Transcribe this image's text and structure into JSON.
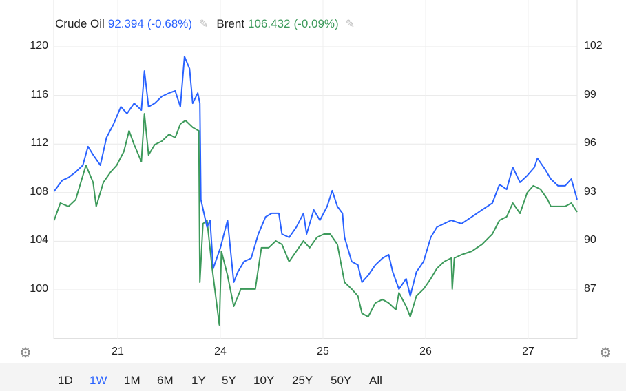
{
  "legend": [
    {
      "name": "Crude Oil",
      "value": "92.394",
      "change": "(-0.68%)",
      "color": "#2962ff",
      "icon": "pencil-icon"
    },
    {
      "name": "Brent",
      "value": "106.432",
      "change": "(-0.09%)",
      "color": "#3d9a5b",
      "icon": "pencil-icon"
    }
  ],
  "ranges": [
    "1D",
    "1W",
    "1M",
    "6M",
    "1Y",
    "5Y",
    "10Y",
    "25Y",
    "50Y",
    "All"
  ],
  "active_range": "1W",
  "settings_icon": "gear-icon",
  "chart_data": {
    "type": "line",
    "x_ticks": [
      {
        "t": 0,
        "label": "21"
      },
      {
        "t": 1,
        "label": "24"
      },
      {
        "t": 2,
        "label": "25"
      },
      {
        "t": 3,
        "label": "26"
      },
      {
        "t": 4,
        "label": "27"
      }
    ],
    "x_range": [
      -0.62,
      4.48
    ],
    "left_axis": {
      "ticks": [
        "120",
        "116",
        "112",
        "108",
        "104",
        "100"
      ],
      "range": [
        96,
        123.8
      ]
    },
    "right_axis": {
      "ticks": [
        "102",
        "99",
        "96",
        "93",
        "90",
        "87"
      ],
      "range": [
        84.1,
        104.9
      ]
    },
    "grid": true,
    "series": [
      {
        "name": "Crude Oil",
        "axis": "right",
        "color": "#2962ff",
        "t": [
          -0.62,
          -0.54,
          -0.48,
          -0.41,
          -0.34,
          -0.29,
          -0.24,
          -0.17,
          -0.11,
          -0.04,
          0.03,
          0.09,
          0.16,
          0.23,
          0.26,
          0.3,
          0.36,
          0.43,
          0.5,
          0.56,
          0.61,
          0.65,
          0.7,
          0.73,
          0.78,
          0.8,
          0.81,
          0.87,
          0.9,
          0.93,
          1.0,
          1.07,
          1.13,
          1.17,
          1.23,
          1.3,
          1.37,
          1.44,
          1.5,
          1.57,
          1.6,
          1.67,
          1.74,
          1.81,
          1.84,
          1.91,
          1.97,
          2.04,
          2.09,
          2.14,
          2.19,
          2.21,
          2.28,
          2.34,
          2.38,
          2.44,
          2.51,
          2.58,
          2.64,
          2.68,
          2.74,
          2.81,
          2.85,
          2.91,
          2.98,
          3.05,
          3.11,
          3.18,
          3.25,
          3.35,
          3.45,
          3.55,
          3.65,
          3.72,
          3.79,
          3.85,
          3.92,
          3.99,
          4.06,
          4.09,
          4.16,
          4.22,
          4.29,
          4.36,
          4.42,
          4.48
        ],
        "values": [
          93.08,
          93.76,
          93.93,
          94.27,
          94.69,
          95.84,
          95.33,
          94.69,
          96.39,
          97.24,
          98.3,
          97.88,
          98.51,
          98.09,
          100.51,
          98.3,
          98.51,
          98.94,
          99.15,
          99.28,
          98.3,
          101.4,
          100.64,
          98.51,
          99.15,
          98.51,
          92.57,
          90.87,
          91.29,
          88.32,
          89.59,
          91.29,
          87.47,
          88.1,
          88.74,
          88.95,
          90.44,
          91.5,
          91.72,
          91.72,
          90.44,
          90.23,
          90.87,
          91.72,
          90.44,
          91.93,
          91.29,
          92.14,
          93.12,
          92.14,
          91.72,
          90.23,
          88.74,
          88.53,
          87.47,
          87.89,
          88.53,
          88.95,
          89.17,
          88.1,
          87.04,
          87.68,
          86.62,
          88.1,
          88.74,
          90.23,
          90.87,
          91.08,
          91.29,
          91.08,
          91.5,
          91.93,
          92.35,
          93.5,
          93.2,
          94.56,
          93.63,
          94.05,
          94.56,
          95.12,
          94.48,
          93.84,
          93.42,
          93.42,
          93.84,
          92.57
        ]
      },
      {
        "name": "Brent",
        "axis": "left",
        "color": "#3d9a5b",
        "t": [
          -0.62,
          -0.56,
          -0.48,
          -0.41,
          -0.31,
          -0.24,
          -0.21,
          -0.14,
          -0.07,
          -0.01,
          0.06,
          0.11,
          0.16,
          0.23,
          0.26,
          0.3,
          0.36,
          0.43,
          0.5,
          0.56,
          0.61,
          0.66,
          0.73,
          0.79,
          0.8,
          0.83,
          0.87,
          0.92,
          0.99,
          1.01,
          1.07,
          1.13,
          1.2,
          1.27,
          1.34,
          1.4,
          1.47,
          1.54,
          1.6,
          1.67,
          1.74,
          1.81,
          1.87,
          1.94,
          2.01,
          2.07,
          2.14,
          2.21,
          2.28,
          2.34,
          2.38,
          2.44,
          2.51,
          2.58,
          2.64,
          2.71,
          2.74,
          2.81,
          2.85,
          2.91,
          2.98,
          3.05,
          3.11,
          3.18,
          3.25,
          3.26,
          3.28,
          3.35,
          3.45,
          3.55,
          3.65,
          3.72,
          3.79,
          3.85,
          3.92,
          3.99,
          4.05,
          4.12,
          4.19,
          4.22,
          4.29,
          4.36,
          4.42,
          4.48
        ],
        "values": [
          105.72,
          107.14,
          106.86,
          107.42,
          110.25,
          108.84,
          106.86,
          108.84,
          109.69,
          110.25,
          111.39,
          113.09,
          111.95,
          110.54,
          114.5,
          111.1,
          111.95,
          112.24,
          112.8,
          112.52,
          113.65,
          113.94,
          113.37,
          113.09,
          100.62,
          105.44,
          105.72,
          101.76,
          97.11,
          103.17,
          101.19,
          98.64,
          100.06,
          100.06,
          100.06,
          103.46,
          103.46,
          104.02,
          103.74,
          102.32,
          103.17,
          104.02,
          103.46,
          104.31,
          104.59,
          104.59,
          103.74,
          100.62,
          100.06,
          99.49,
          98.07,
          97.79,
          98.92,
          99.21,
          98.92,
          98.36,
          99.77,
          98.64,
          97.79,
          99.49,
          100.06,
          100.91,
          101.76,
          102.32,
          102.61,
          100.06,
          102.61,
          102.89,
          103.17,
          103.74,
          104.59,
          105.72,
          106.01,
          107.14,
          106.29,
          107.99,
          108.56,
          108.27,
          107.42,
          106.86,
          106.86,
          106.86,
          107.14,
          106.4
        ]
      }
    ]
  }
}
